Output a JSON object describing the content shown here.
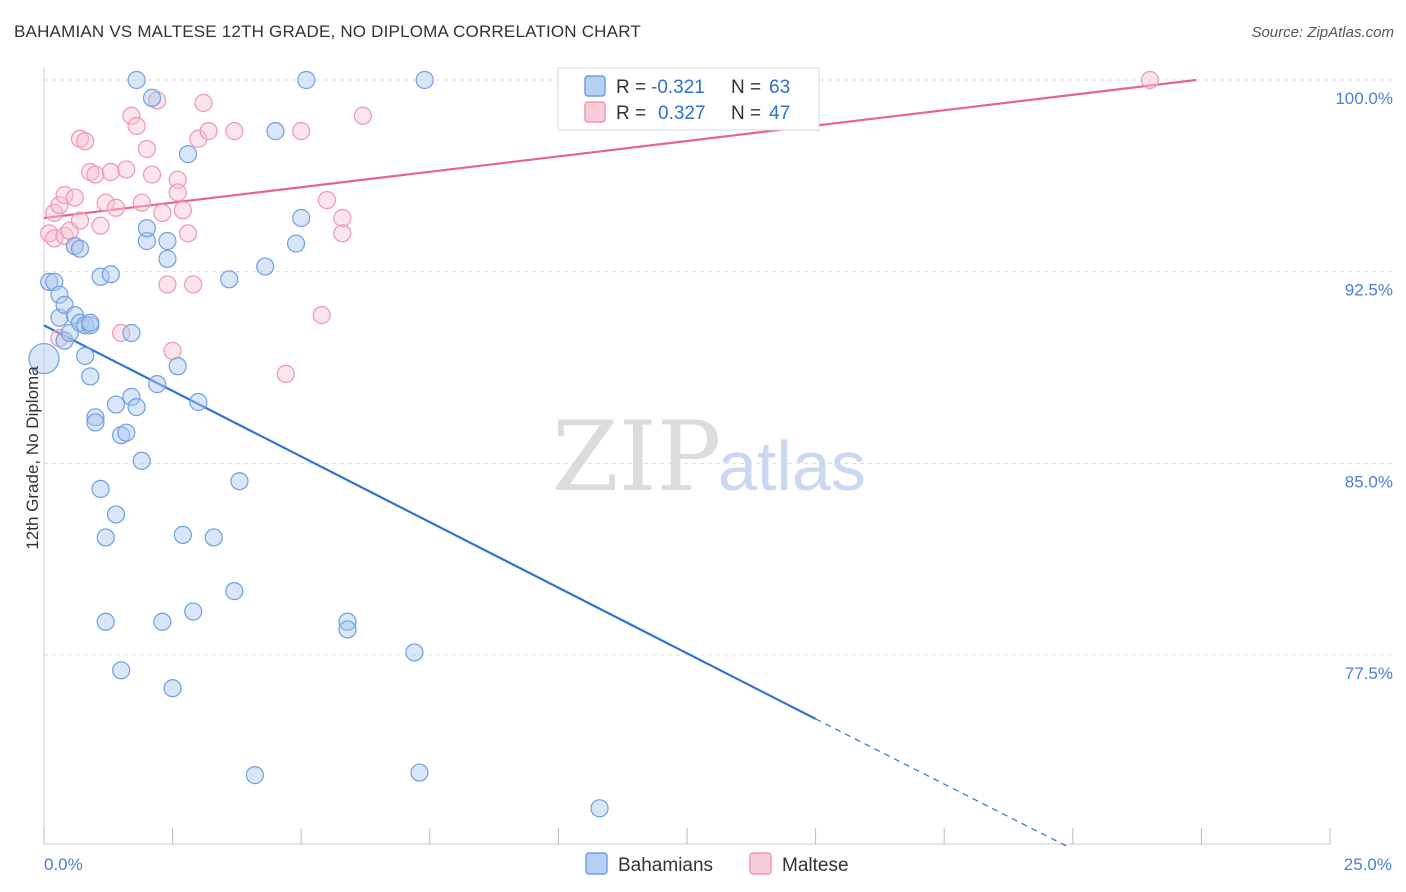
{
  "title": "BAHAMIAN VS MALTESE 12TH GRADE, NO DIPLOMA CORRELATION CHART",
  "source": "Source: ZipAtlas.com",
  "watermark": {
    "zip": "ZIP",
    "atlas": "atlas"
  },
  "colors": {
    "bahamians_fill": "#a9c8f0",
    "bahamians_stroke": "#6f9fe0",
    "bahamians_line": "#2f74d0",
    "maltese_fill": "#f7c4d2",
    "maltese_stroke": "#ee97b2",
    "maltese_line": "#e8648f",
    "tick_text": "#4a7fd6",
    "grid": "#dddddd"
  },
  "legend": {
    "r_label": "R =",
    "n_label": "N =",
    "rows": [
      {
        "series": "Bahamians",
        "r": "-0.321",
        "n": "63"
      },
      {
        "series": "Maltese",
        "r": "0.327",
        "n": "47"
      }
    ]
  },
  "chart_data": {
    "type": "scatter",
    "title": "BAHAMIAN VS MALTESE 12TH GRADE, NO DIPLOMA CORRELATION CHART",
    "xlabel": "",
    "ylabel": "12th Grade, No Diploma",
    "xlim": [
      0.0,
      25.0
    ],
    "ylim": [
      70.0,
      101.0
    ],
    "x_ticks_labeled": [
      "0.0%",
      "25.0%"
    ],
    "y_ticks": [
      100.0,
      92.5,
      85.0,
      77.5
    ],
    "y_tick_labels": [
      "100.0%",
      "92.5%",
      "85.0%",
      "77.5%"
    ],
    "grid": true,
    "legend_placement": "top-center",
    "series": [
      {
        "name": "Bahamians",
        "r": -0.321,
        "n": 63,
        "trend": {
          "x0": 0.0,
          "y0": 90.4,
          "x1": 15.0,
          "y1": 75.0,
          "dashed_to_x": 19.9,
          "dashed_to_y": 70.0
        },
        "points": [
          [
            0.0,
            89.1
          ],
          [
            0.1,
            92.1
          ],
          [
            0.2,
            92.1
          ],
          [
            0.3,
            91.6
          ],
          [
            0.3,
            90.7
          ],
          [
            0.4,
            91.2
          ],
          [
            0.4,
            89.8
          ],
          [
            0.5,
            90.1
          ],
          [
            0.6,
            90.8
          ],
          [
            0.6,
            93.5
          ],
          [
            0.7,
            90.5
          ],
          [
            0.7,
            93.4
          ],
          [
            0.8,
            90.4
          ],
          [
            0.8,
            89.2
          ],
          [
            0.9,
            88.4
          ],
          [
            0.9,
            90.4
          ],
          [
            1.0,
            86.8
          ],
          [
            1.0,
            86.6
          ],
          [
            1.1,
            84.0
          ],
          [
            1.1,
            92.3
          ],
          [
            1.2,
            82.1
          ],
          [
            1.2,
            78.8
          ],
          [
            1.3,
            92.4
          ],
          [
            1.4,
            87.3
          ],
          [
            1.4,
            83.0
          ],
          [
            1.5,
            76.9
          ],
          [
            1.5,
            86.1
          ],
          [
            1.6,
            86.2
          ],
          [
            1.7,
            87.6
          ],
          [
            1.7,
            90.1
          ],
          [
            1.8,
            87.2
          ],
          [
            1.8,
            100.0
          ],
          [
            1.9,
            85.1
          ],
          [
            2.0,
            93.7
          ],
          [
            2.0,
            94.2
          ],
          [
            2.1,
            99.3
          ],
          [
            2.2,
            88.1
          ],
          [
            2.3,
            78.8
          ],
          [
            2.4,
            93.0
          ],
          [
            2.4,
            93.7
          ],
          [
            2.5,
            76.2
          ],
          [
            2.6,
            88.8
          ],
          [
            2.7,
            82.2
          ],
          [
            2.8,
            97.1
          ],
          [
            2.9,
            79.2
          ],
          [
            3.0,
            87.4
          ],
          [
            3.3,
            82.1
          ],
          [
            3.6,
            92.2
          ],
          [
            3.7,
            80.0
          ],
          [
            3.8,
            84.3
          ],
          [
            4.1,
            72.8
          ],
          [
            4.3,
            92.7
          ],
          [
            4.5,
            98.0
          ],
          [
            4.9,
            93.6
          ],
          [
            5.0,
            94.6
          ],
          [
            5.1,
            100.0
          ],
          [
            5.9,
            78.8
          ],
          [
            5.9,
            78.5
          ],
          [
            7.2,
            77.6
          ],
          [
            7.3,
            72.9
          ],
          [
            7.4,
            100.0
          ],
          [
            10.8,
            71.5
          ],
          [
            0.9,
            90.5
          ]
        ]
      },
      {
        "name": "Maltese",
        "r": 0.327,
        "n": 47,
        "trend": {
          "x0": 0.0,
          "y0": 94.6,
          "x1": 22.4,
          "y1": 100.0
        },
        "points": [
          [
            0.1,
            94.0
          ],
          [
            0.2,
            93.8
          ],
          [
            0.2,
            94.8
          ],
          [
            0.3,
            95.1
          ],
          [
            0.3,
            89.9
          ],
          [
            0.4,
            93.9
          ],
          [
            0.4,
            95.5
          ],
          [
            0.5,
            94.1
          ],
          [
            0.6,
            93.5
          ],
          [
            0.6,
            95.4
          ],
          [
            0.7,
            97.7
          ],
          [
            0.7,
            94.5
          ],
          [
            0.8,
            97.6
          ],
          [
            0.9,
            96.4
          ],
          [
            1.0,
            96.3
          ],
          [
            1.1,
            94.3
          ],
          [
            1.2,
            95.2
          ],
          [
            1.3,
            96.4
          ],
          [
            1.4,
            95.0
          ],
          [
            1.5,
            90.1
          ],
          [
            1.6,
            96.5
          ],
          [
            1.7,
            98.6
          ],
          [
            1.8,
            98.2
          ],
          [
            1.9,
            95.2
          ],
          [
            2.0,
            97.3
          ],
          [
            2.1,
            96.3
          ],
          [
            2.2,
            99.2
          ],
          [
            2.3,
            94.8
          ],
          [
            2.4,
            92.0
          ],
          [
            2.5,
            89.4
          ],
          [
            2.6,
            96.1
          ],
          [
            2.6,
            95.6
          ],
          [
            2.7,
            94.9
          ],
          [
            2.8,
            94.0
          ],
          [
            2.9,
            92.0
          ],
          [
            3.0,
            97.7
          ],
          [
            3.1,
            99.1
          ],
          [
            3.2,
            98.0
          ],
          [
            3.7,
            98.0
          ],
          [
            4.7,
            88.5
          ],
          [
            5.0,
            98.0
          ],
          [
            5.4,
            90.8
          ],
          [
            5.5,
            95.3
          ],
          [
            5.8,
            94.6
          ],
          [
            5.8,
            94.0
          ],
          [
            6.2,
            98.6
          ],
          [
            21.5,
            100.0
          ]
        ]
      }
    ]
  },
  "bottom_legend": [
    {
      "label": "Bahamians"
    },
    {
      "label": "Maltese"
    }
  ],
  "axis_text": {
    "ylabel": "12th Grade, No Diploma",
    "x_left": "0.0%",
    "x_right": "25.0%"
  }
}
